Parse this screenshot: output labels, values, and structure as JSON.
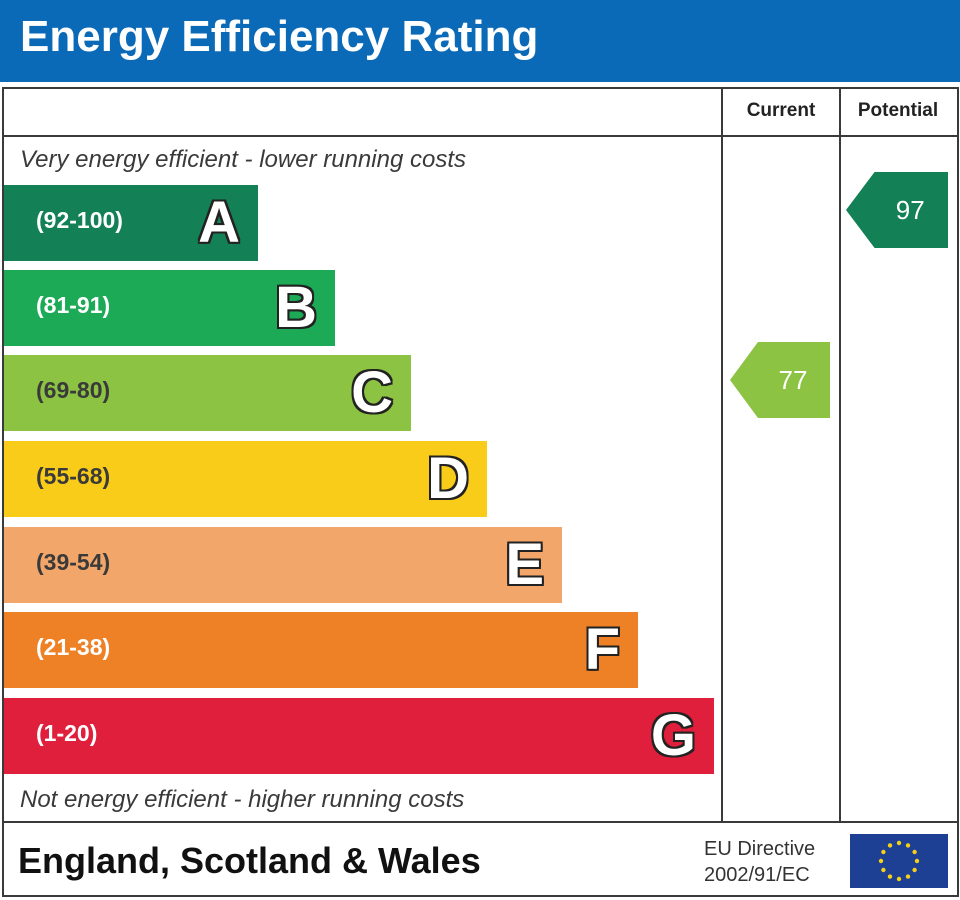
{
  "header": {
    "title": "Energy Efficiency Rating"
  },
  "columns": {
    "current": "Current",
    "potential": "Potential"
  },
  "notes": {
    "top": "Very energy efficient - lower running costs",
    "bottom": "Not energy efficient - higher running costs"
  },
  "footer": {
    "region": "England, Scotland & Wales",
    "directive_line1": "EU Directive",
    "directive_line2": "2002/91/EC"
  },
  "chart_data": {
    "type": "bar",
    "title": "Energy Efficiency Rating",
    "bands": [
      {
        "letter": "A",
        "range": "(92-100)",
        "color": "#138055"
      },
      {
        "letter": "B",
        "range": "(81-91)",
        "color": "#1daa56"
      },
      {
        "letter": "C",
        "range": "(69-80)",
        "color": "#8cc342"
      },
      {
        "letter": "D",
        "range": "(55-68)",
        "color": "#f8cc18"
      },
      {
        "letter": "E",
        "range": "(39-54)",
        "color": "#f2a66a"
      },
      {
        "letter": "F",
        "range": "(21-38)",
        "color": "#ee8126"
      },
      {
        "letter": "G",
        "range": "(1-20)",
        "color": "#e01f3d"
      }
    ],
    "current": {
      "value": 77,
      "band": "C",
      "color": "#8cc342"
    },
    "potential": {
      "value": 97,
      "band": "A",
      "color": "#138055"
    }
  },
  "colors": {
    "header": "#0a6ab7",
    "flag": "#1d3f94",
    "star": "#f7d117"
  }
}
